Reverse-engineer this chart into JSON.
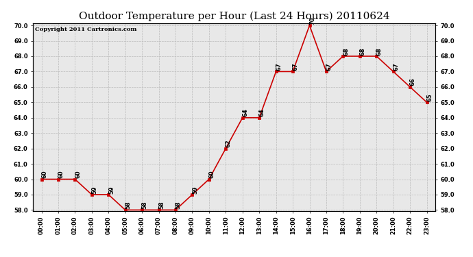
{
  "title": "Outdoor Temperature per Hour (Last 24 Hours) 20110624",
  "copyright_text": "Copyright 2011 Cartronics.com",
  "hours": [
    "00:00",
    "01:00",
    "02:00",
    "03:00",
    "04:00",
    "05:00",
    "06:00",
    "07:00",
    "08:00",
    "09:00",
    "10:00",
    "11:00",
    "12:00",
    "13:00",
    "14:00",
    "15:00",
    "16:00",
    "17:00",
    "18:00",
    "19:00",
    "20:00",
    "21:00",
    "22:00",
    "23:00"
  ],
  "temps": [
    60,
    60,
    60,
    59,
    59,
    58,
    58,
    58,
    58,
    59,
    60,
    62,
    64,
    64,
    67,
    67,
    70,
    67,
    68,
    68,
    68,
    67,
    66,
    65
  ],
  "ylim_min": 58.0,
  "ylim_max": 70.0,
  "line_color": "#cc0000",
  "marker_color": "#cc0000",
  "bg_color": "#ffffff",
  "plot_bg_color": "#e8e8e8",
  "grid_color": "#bbbbbb",
  "title_fontsize": 11,
  "annot_fontsize": 6,
  "tick_fontsize": 6,
  "copyright_fontsize": 6
}
